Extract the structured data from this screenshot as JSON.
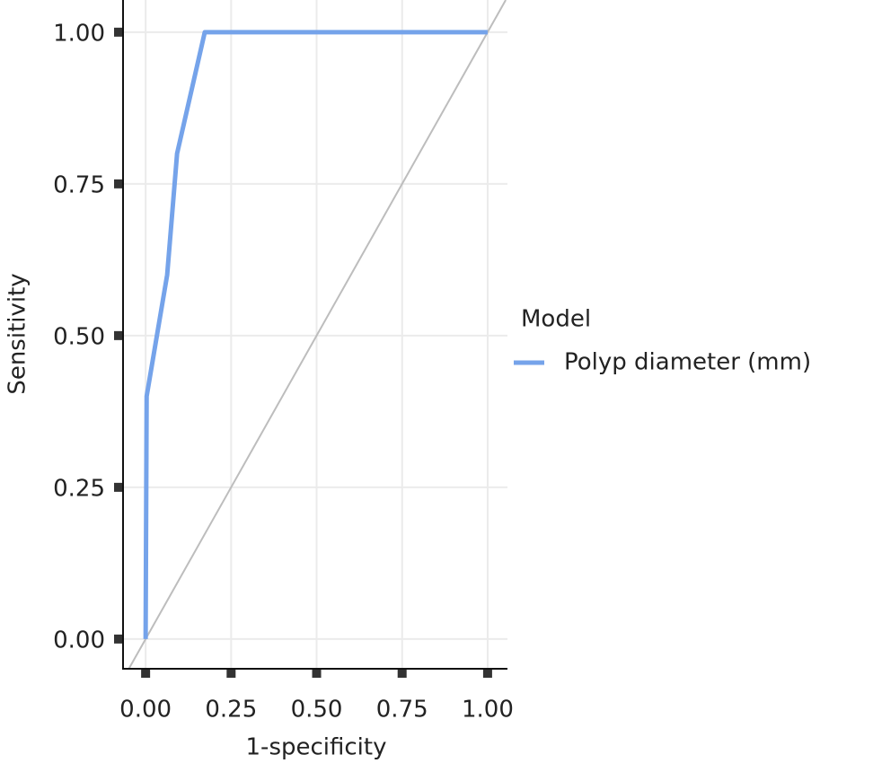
{
  "chart_data": {
    "type": "line",
    "x_label": "1-specificity",
    "y_label": "Sensitivity",
    "legend_title": "Model",
    "legend_position": "right",
    "grid": true,
    "reference_diagonal": true,
    "xlim": [
      -0.066,
      1.058
    ],
    "ylim": [
      -0.049,
      1.053
    ],
    "xticks": [
      {
        "value": 0,
        "label": "0.00"
      },
      {
        "value": 0.25,
        "label": "0.25"
      },
      {
        "value": 0.5,
        "label": "0.50"
      },
      {
        "value": 0.75,
        "label": "0.75"
      },
      {
        "value": 1,
        "label": "1.00"
      }
    ],
    "yticks": [
      {
        "value": 0,
        "label": "0.00"
      },
      {
        "value": 0.25,
        "label": "0.25"
      },
      {
        "value": 0.5,
        "label": "0.50"
      },
      {
        "value": 0.75,
        "label": "0.75"
      },
      {
        "value": 1,
        "label": "1.00"
      }
    ],
    "x": [
      0,
      0.003,
      0.063,
      0.092,
      0.173,
      1
    ],
    "series": [
      {
        "name": "Polyp diameter (mm)",
        "color": "#75a3ea",
        "values": [
          0,
          0.4,
          0.6,
          0.8,
          1,
          1
        ]
      }
    ]
  }
}
